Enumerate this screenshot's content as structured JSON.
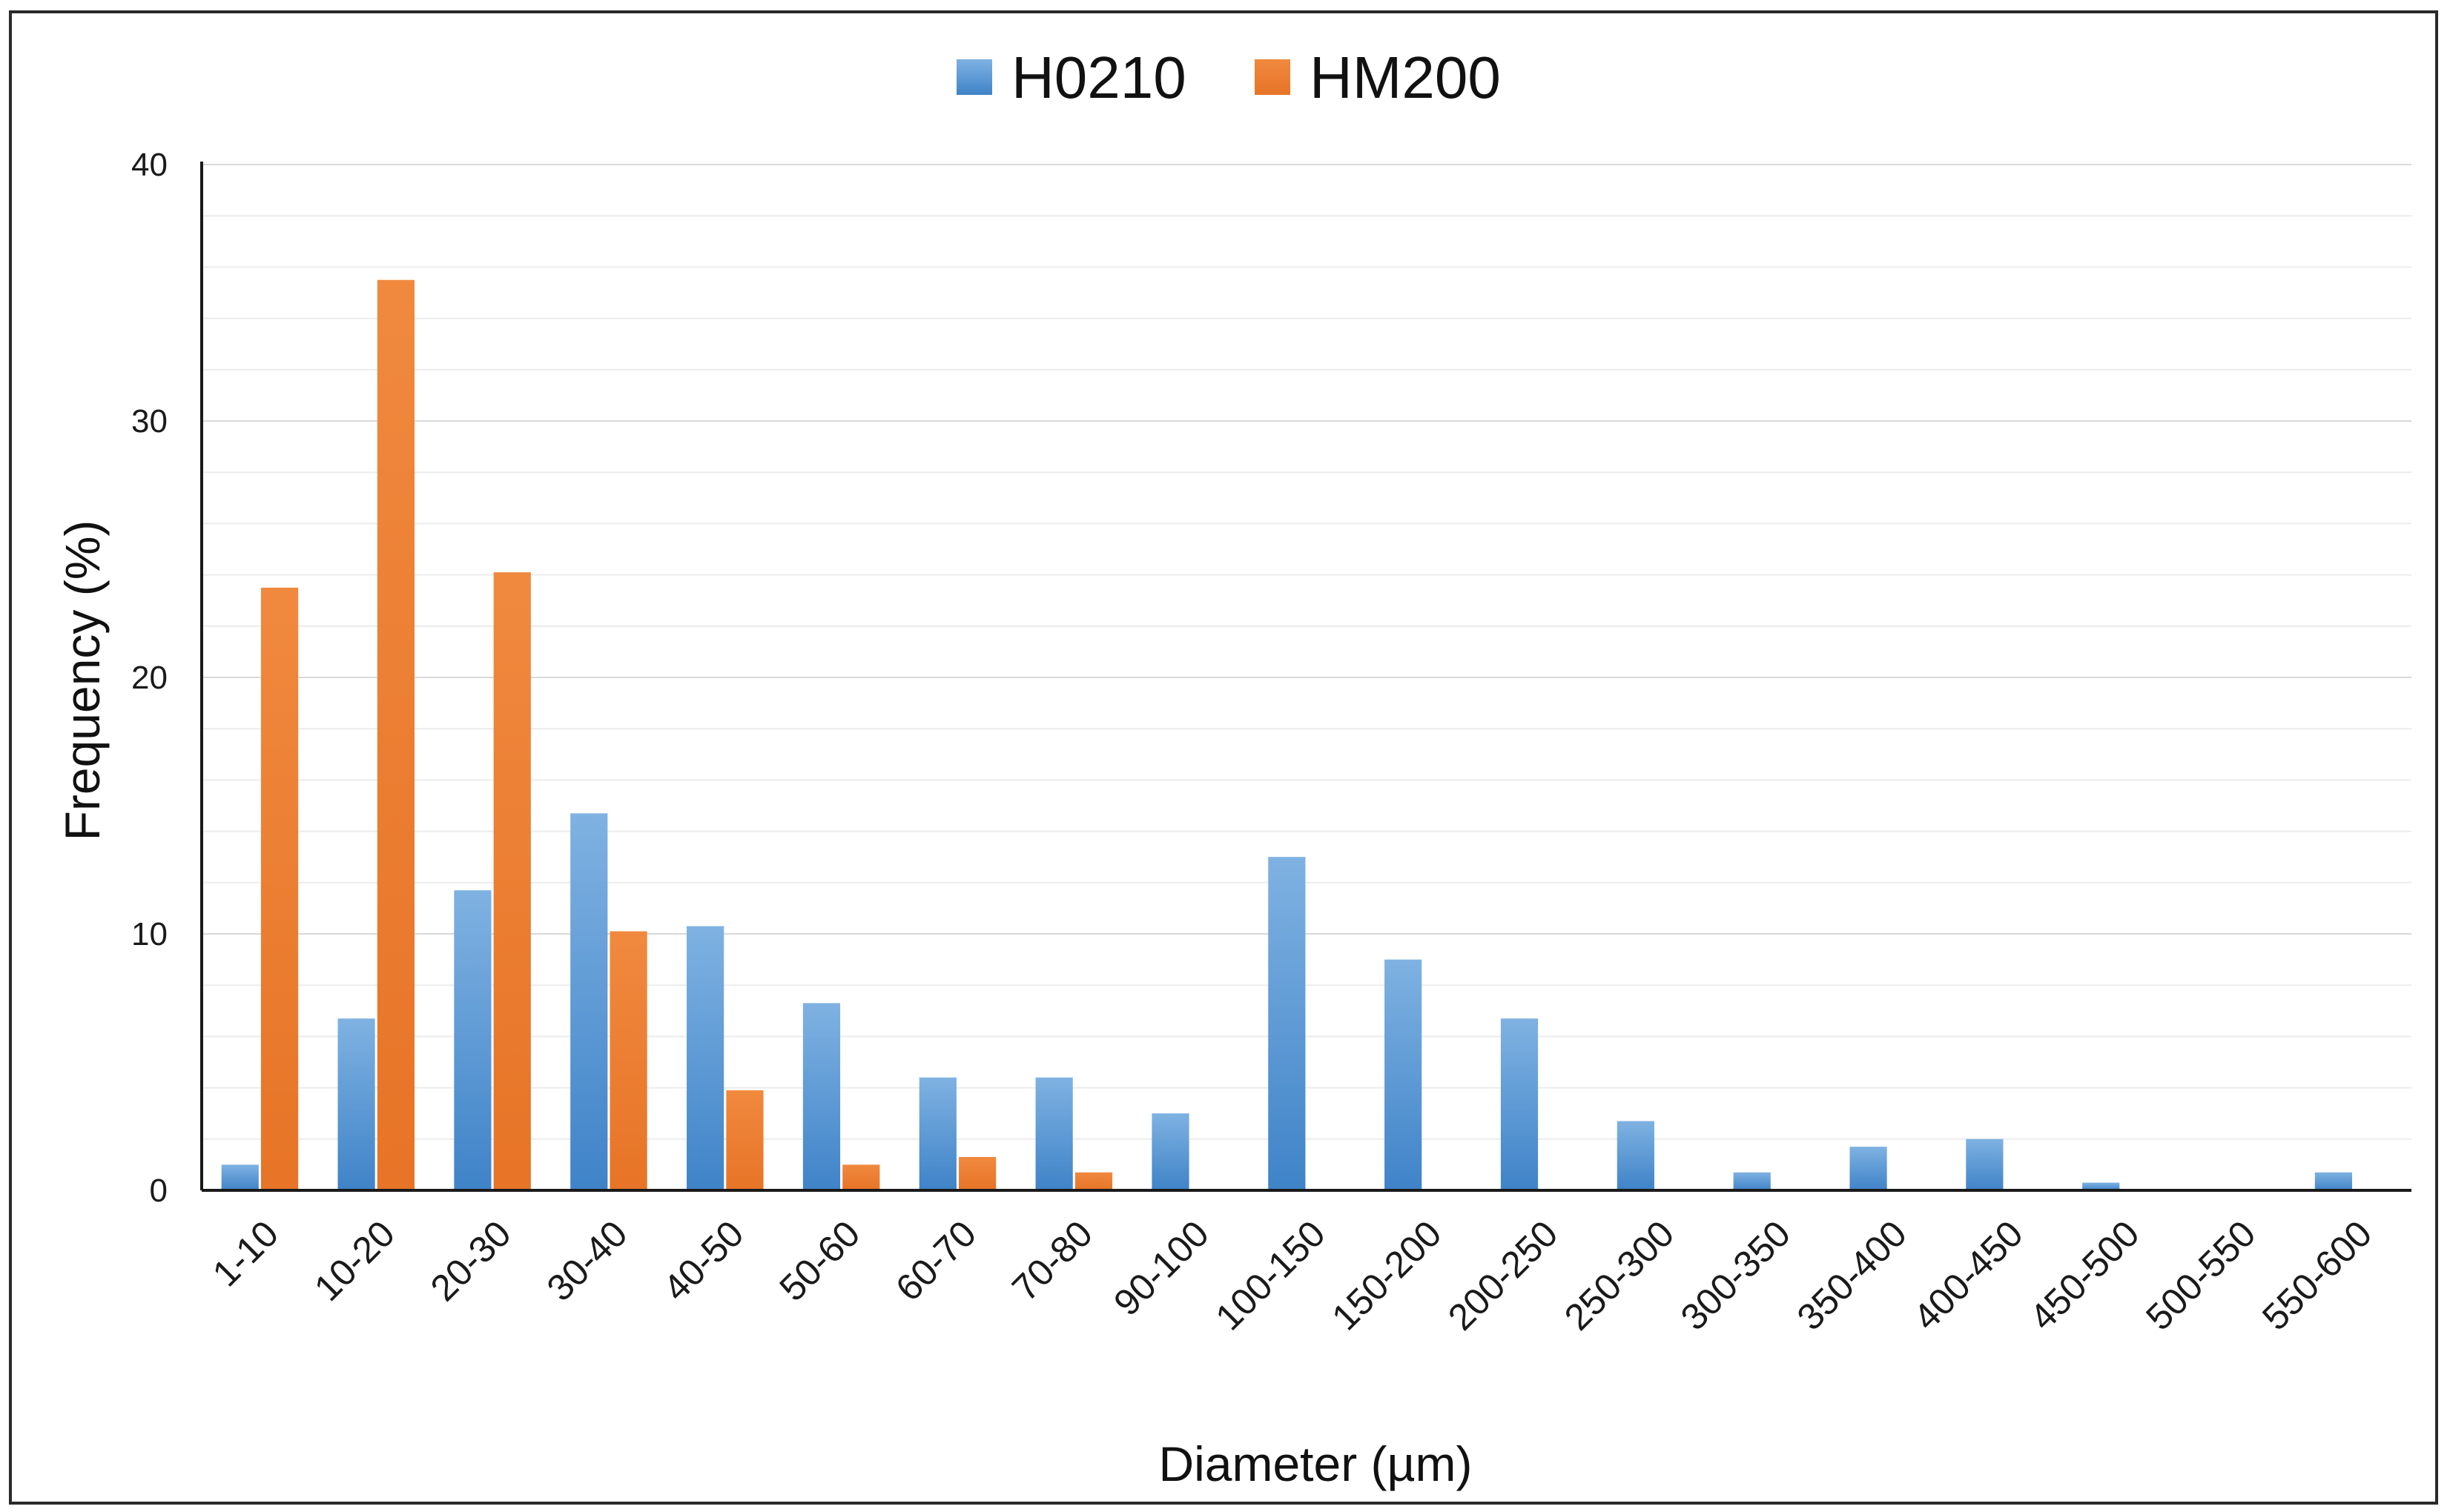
{
  "chart_data": {
    "type": "bar",
    "title": "",
    "xlabel": "Diameter (µm)",
    "ylabel": "Frequency (%)",
    "ylim": [
      0,
      40
    ],
    "yticks": [
      0,
      10,
      20,
      30,
      40
    ],
    "grid": true,
    "legend_position": "top-center",
    "categories": [
      "1-10",
      "10-20",
      "20-30",
      "30-40",
      "40-50",
      "50-60",
      "60-70",
      "70-80",
      "90-100",
      "100-150",
      "150-200",
      "200-250",
      "250-300",
      "300-350",
      "350-400",
      "400-450",
      "450-500",
      "500-550",
      "550-600"
    ],
    "series": [
      {
        "name": "H0210",
        "color": "#5B9BD5",
        "values": [
          1.0,
          6.7,
          11.7,
          14.7,
          10.3,
          7.3,
          4.4,
          4.4,
          3.0,
          13.0,
          9.0,
          6.7,
          2.7,
          0.7,
          1.7,
          2.0,
          0.3,
          0,
          0.7
        ]
      },
      {
        "name": "HM200",
        "color": "#ED7D31",
        "values": [
          23.5,
          35.5,
          24.1,
          10.1,
          3.9,
          1.0,
          1.3,
          0.7,
          0,
          0,
          0,
          0,
          0,
          0,
          0,
          0,
          0,
          0,
          0
        ]
      }
    ]
  }
}
